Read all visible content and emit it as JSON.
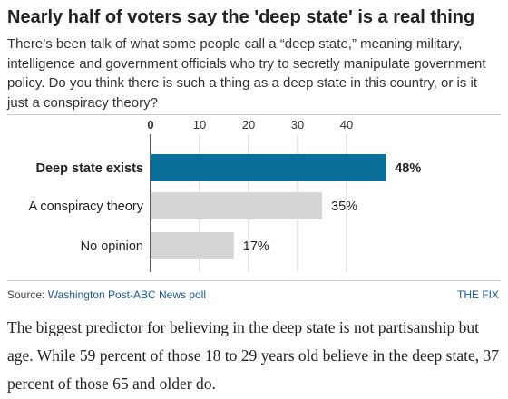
{
  "title": "Nearly half of voters say the 'deep state' is a real thing",
  "subtitle": "There’s been talk of what some people call a “deep state,” meaning military, intelligence and government officials who try to secretly manipulate government policy. Do you think there is such a thing as a deep state in this country, or is it just a conspiracy theory?",
  "source_prefix": "Source: ",
  "source_name": "Washington Post-ABC News poll",
  "brand": "THE FIX",
  "body_text": "The biggest predictor for believing in the deep state is not partisanship but age. While 59 percent of those 18 to 29 years old believe in the deep state, 37 percent of those 65 and older do.",
  "colors": {
    "highlight": "#0b6f9c",
    "muted": "#d6d6d4",
    "link": "#1a5a96"
  },
  "chart_data": {
    "type": "bar",
    "orientation": "horizontal",
    "categories": [
      "Deep state exists",
      "A conspiracy theory",
      "No opinion"
    ],
    "values": [
      48,
      35,
      17
    ],
    "value_labels": [
      "48%",
      "35%",
      "17%"
    ],
    "highlight": [
      true,
      false,
      false
    ],
    "x_ticks": [
      "0",
      "10",
      "20",
      "30",
      "40"
    ],
    "xlim": [
      0,
      50
    ],
    "grid": true,
    "xlabel": "",
    "ylabel": ""
  }
}
